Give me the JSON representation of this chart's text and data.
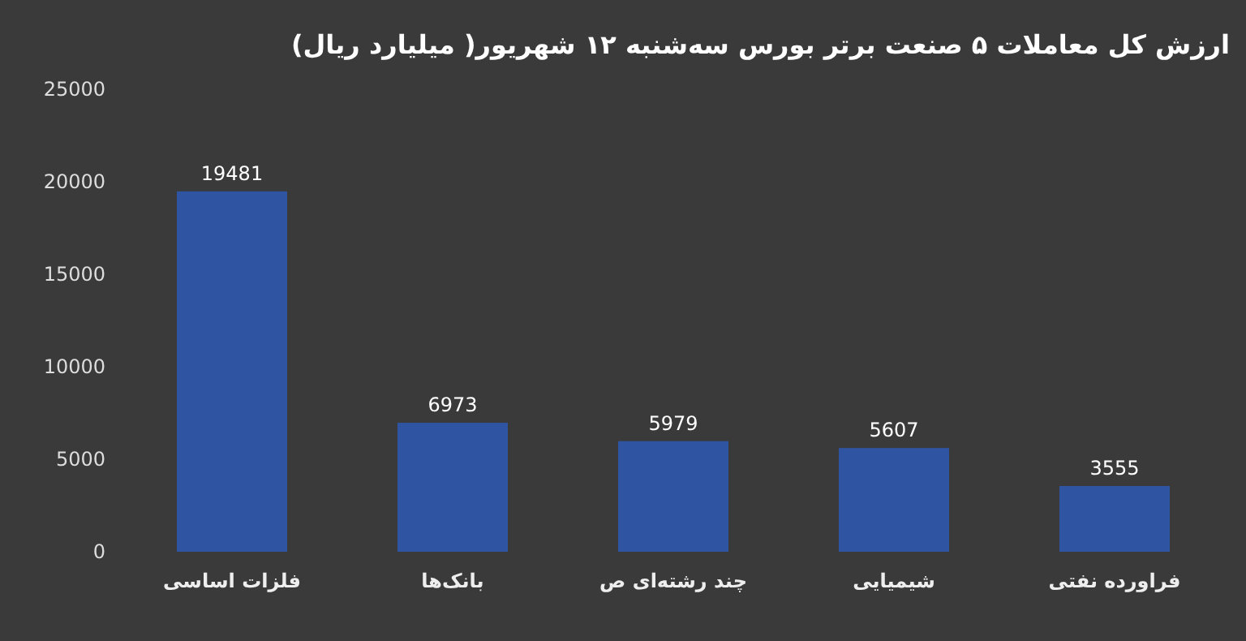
{
  "chart_data": {
    "type": "bar",
    "title": "ارزش کل معاملات ۵ صنعت برتر بورس سه‌شنبه ۱۲ شهریور( میلیارد ریال)",
    "categories": [
      "فلزات اساسی",
      "بانک‌ها",
      "چند رشته‌ای ص",
      "شیمیایی",
      "فراورده نفتی"
    ],
    "values": [
      19481,
      6973,
      5979,
      5607,
      3555
    ],
    "color": "#2f55a2",
    "ylim": [
      0,
      25000
    ],
    "yticks": [
      0,
      5000,
      10000,
      15000,
      20000,
      25000
    ],
    "data_labels": true
  }
}
